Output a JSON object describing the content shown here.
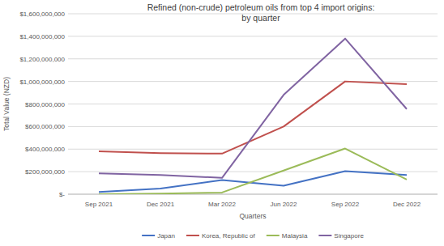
{
  "chart_data": {
    "type": "line",
    "title": [
      "Refined (non-crude) petroleum oils from top 4 import origins:",
      "by quarter"
    ],
    "x_label": "Quarters",
    "y_label": "Total Value (NZD)",
    "categories": [
      "Sep 2021",
      "Dec 2021",
      "Mar 2022",
      "Jun 2022",
      "Sep 2022",
      "Dec 2022"
    ],
    "series": [
      {
        "name": "Japan",
        "color": "#4472c4",
        "values": [
          20000000,
          50000000,
          125000000,
          75000000,
          205000000,
          170000000
        ]
      },
      {
        "name": "Korea, Republic of",
        "color": "#c0504d",
        "values": [
          380000000,
          365000000,
          360000000,
          600000000,
          1000000000,
          975000000
        ]
      },
      {
        "name": "Malaysia",
        "color": "#9bbb59",
        "values": [
          0,
          5000000,
          15000000,
          210000000,
          405000000,
          130000000
        ]
      },
      {
        "name": "Singapore",
        "color": "#8064a2",
        "values": [
          185000000,
          170000000,
          145000000,
          880000000,
          1380000000,
          755000000
        ]
      }
    ],
    "ylim": [
      0,
      1600000000
    ],
    "yticks": [
      {
        "value": 0,
        "label": "$-"
      },
      {
        "value": 200000000,
        "label": "$200,000,000"
      },
      {
        "value": 400000000,
        "label": "$400,000,000"
      },
      {
        "value": 600000000,
        "label": "$600,000,000"
      },
      {
        "value": 800000000,
        "label": "$800,000,000"
      },
      {
        "value": 1000000000,
        "label": "$1,000,000,000"
      },
      {
        "value": 1200000000,
        "label": "$1,200,000,000"
      },
      {
        "value": 1400000000,
        "label": "$1,400,000,000"
      },
      {
        "value": 1600000000,
        "label": "$1,600,000,000"
      }
    ],
    "grid": true,
    "legend": "bottom"
  }
}
